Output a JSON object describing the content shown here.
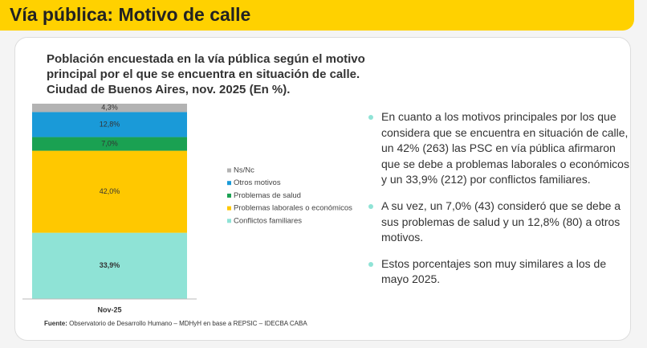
{
  "header": {
    "title": "Vía pública: Motivo de calle"
  },
  "chart_data": {
    "type": "stacked_bar",
    "title": "Población encuestada en la vía pública según el motivo principal por el que se encuentra en situación de calle. Ciudad de Buenos Aires, nov. 2025 (En %).",
    "categories": [
      "Nov-25"
    ],
    "ylim": [
      0,
      100
    ],
    "series": [
      {
        "name": "Conflictos familiares",
        "color": "#8fe3d6",
        "values": [
          33.9
        ],
        "value_labels": [
          "33,9%"
        ]
      },
      {
        "name": "Problemas laborales o económicos",
        "color": "#ffc800",
        "values": [
          42.0
        ],
        "value_labels": [
          "42,0%"
        ]
      },
      {
        "name": "Problemas de salud",
        "color": "#1aa152",
        "values": [
          7.0
        ],
        "value_labels": [
          "7,0%"
        ]
      },
      {
        "name": "Otros motivos",
        "color": "#1a9ad8",
        "values": [
          12.8
        ],
        "value_labels": [
          "12,8%"
        ]
      },
      {
        "name": "Ns/Nc",
        "color": "#b3b3b3",
        "values": [
          4.3
        ],
        "value_labels": [
          "4,3%"
        ]
      }
    ]
  },
  "bullets": [
    "En cuanto a los motivos principales por los que considera que se encuentra en situación de calle, un 42% (263) las PSC en vía pública afirmaron que se debe a problemas laborales o económicos y un 33,9% (212) por conflictos familiares.",
    "A su vez, un 7,0% (43) consideró que se debe a sus problemas de salud y un 12,8% (80) a otros motivos.",
    "Estos porcentajes son muy similares a los de mayo 2025."
  ],
  "source": {
    "label": "Fuente:",
    "text": "Observatorio de Desarrollo Humano – MDHyH en base a REPSIC – IDECBA CABA"
  }
}
